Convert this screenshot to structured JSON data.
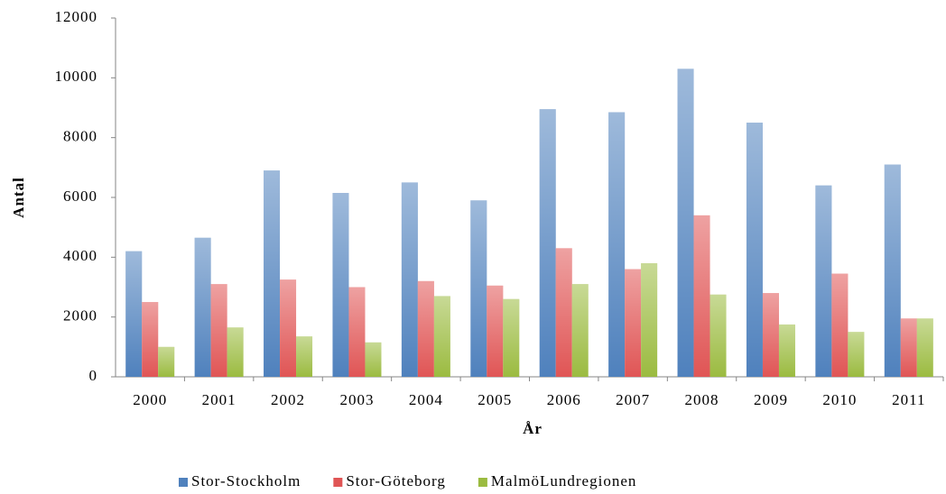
{
  "chart_data": {
    "type": "bar",
    "xlabel": "År",
    "ylabel": "Antal",
    "categories": [
      "2000",
      "2001",
      "2002",
      "2003",
      "2004",
      "2005",
      "2006",
      "2007",
      "2008",
      "2009",
      "2010",
      "2011"
    ],
    "series": [
      {
        "name": "Stor-Stockholm",
        "color": "#4f81bd",
        "values": [
          4200,
          4650,
          6900,
          6150,
          6500,
          5900,
          8950,
          8850,
          10300,
          8500,
          6400,
          7100
        ]
      },
      {
        "name": "Stor-Göteborg",
        "color": "#e05555",
        "values": [
          2500,
          3100,
          3250,
          3000,
          3200,
          3050,
          4300,
          3600,
          5400,
          2800,
          3450,
          1950
        ]
      },
      {
        "name": "MalmöLundregionen",
        "color": "#9bbb40",
        "values": [
          1000,
          1650,
          1350,
          1150,
          2700,
          2600,
          3100,
          3800,
          2750,
          1750,
          1500,
          1950
        ]
      }
    ],
    "ylim": [
      0,
      12000
    ],
    "yticks": [
      0,
      2000,
      4000,
      6000,
      8000,
      10000,
      12000
    ],
    "legend": "bottom"
  }
}
